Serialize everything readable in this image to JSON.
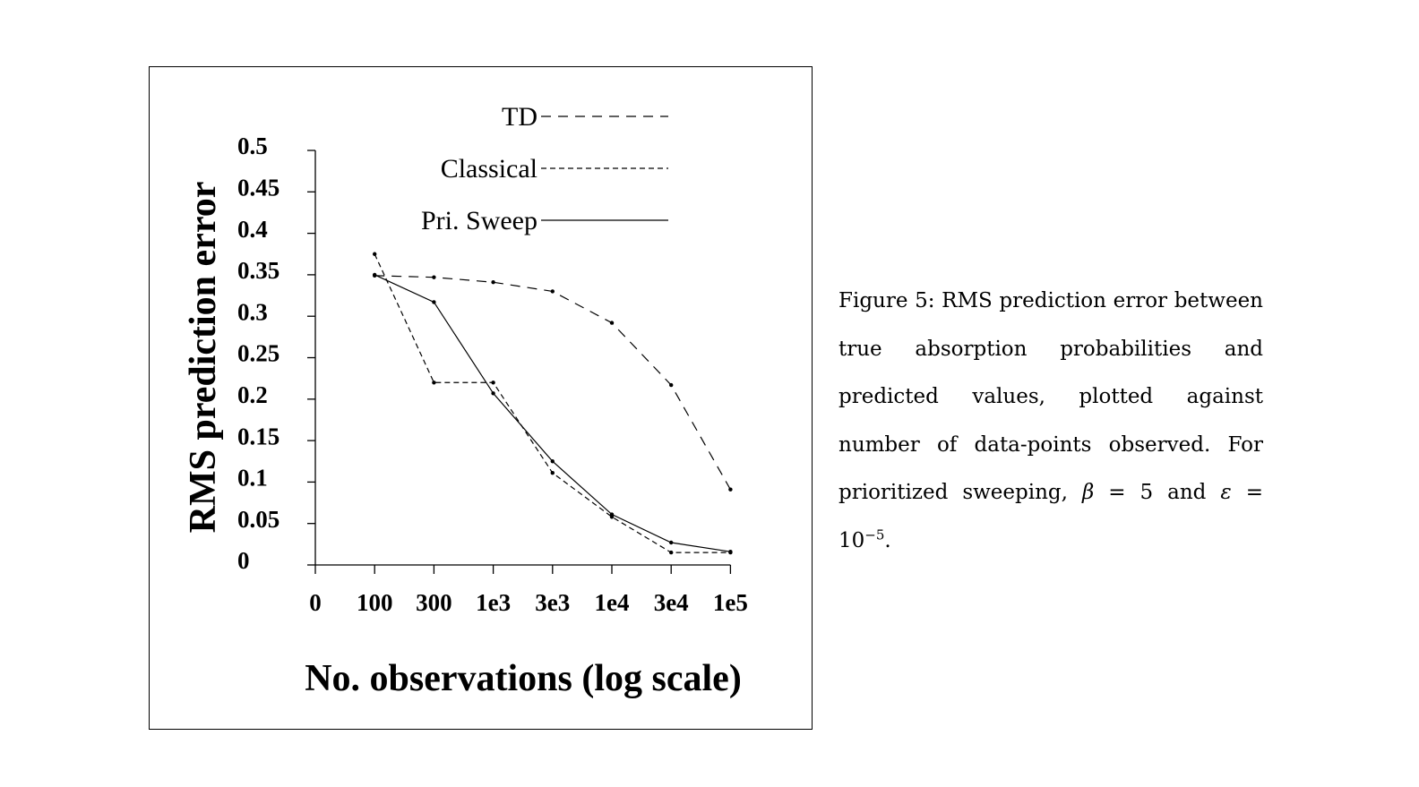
{
  "chart_data": {
    "type": "line",
    "title": "",
    "xlabel": "No. observations (log scale)",
    "ylabel": "RMS prediction error",
    "x_ticks": [
      "0",
      "100",
      "300",
      "1e3",
      "3e3",
      "1e4",
      "3e4",
      "1e5"
    ],
    "categories": [
      "100",
      "300",
      "1e3",
      "3e3",
      "1e4",
      "3e4",
      "1e5"
    ],
    "y_ticks": [
      "0",
      "0.05",
      "0.1",
      "0.15",
      "0.2",
      "0.25",
      "0.3",
      "0.35",
      "0.4",
      "0.45",
      "0.5"
    ],
    "ylim": [
      0,
      0.5
    ],
    "grid": false,
    "legend_position": "top",
    "series": [
      {
        "name": "TD",
        "style": "long-dash",
        "values": [
          0.349,
          0.347,
          0.341,
          0.33,
          0.292,
          0.217,
          0.091
        ]
      },
      {
        "name": "Classical",
        "style": "short-dash",
        "values": [
          0.375,
          0.22,
          0.22,
          0.111,
          0.058,
          0.015,
          0.015
        ]
      },
      {
        "name": "Pri. Sweep",
        "style": "solid",
        "values": [
          0.35,
          0.317,
          0.207,
          0.125,
          0.061,
          0.027,
          0.016
        ]
      }
    ]
  },
  "caption": {
    "text_before_math": "Figure 5: RMS prediction error between true absorption probabilities and predicted values, plotted against number of data-points observed. For prioritized sweeping, ",
    "beta": "β",
    "beta_eq": " = 5 and ",
    "epsilon": "ε",
    "eps_eq": " = 10",
    "exponent": "−5",
    "end": "."
  }
}
